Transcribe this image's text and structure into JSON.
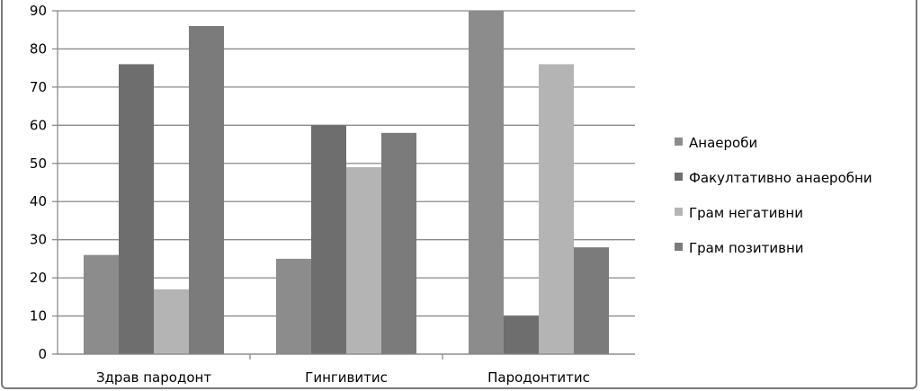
{
  "chart_data": {
    "type": "bar",
    "title": "",
    "xlabel": "",
    "ylabel": "",
    "categories": [
      "Здрав пародонт",
      "Гингивитис",
      "Пародонтитис"
    ],
    "ylim": [
      0,
      90
    ],
    "yticks": [
      0,
      10,
      20,
      30,
      40,
      50,
      60,
      70,
      80,
      90
    ],
    "grid": true,
    "legend_position": "right",
    "series": [
      {
        "name": "Анаероби",
        "values": [
          26,
          25,
          90
        ],
        "color": "#8c8c8c"
      },
      {
        "name": "Факултативно анаеробни",
        "values": [
          76,
          60,
          10
        ],
        "color": "#6e6e6e"
      },
      {
        "name": "Грам негативни",
        "values": [
          17,
          49,
          76
        ],
        "color": "#b4b4b4"
      },
      {
        "name": "Грам позитивни",
        "values": [
          86,
          58,
          28
        ],
        "color": "#7b7b7b"
      }
    ]
  }
}
